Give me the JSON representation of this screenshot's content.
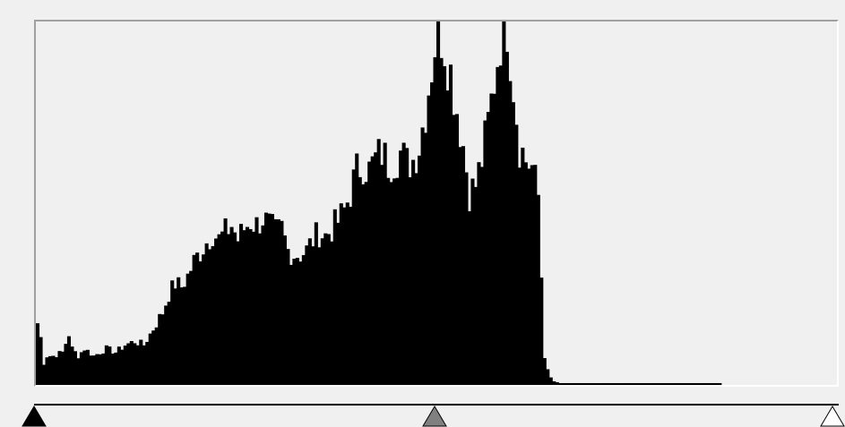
{
  "histogram": {
    "bins": 256,
    "max": 100,
    "bar_color": "#000000",
    "background": "#f0f0f0",
    "keypoints": [
      [
        0,
        17
      ],
      [
        1,
        13
      ],
      [
        2,
        6
      ],
      [
        3,
        8
      ],
      [
        5,
        8
      ],
      [
        8,
        9
      ],
      [
        10,
        14
      ],
      [
        11,
        10
      ],
      [
        13,
        8
      ],
      [
        15,
        10
      ],
      [
        18,
        8
      ],
      [
        20,
        9
      ],
      [
        22,
        10
      ],
      [
        25,
        9
      ],
      [
        28,
        11
      ],
      [
        31,
        12
      ],
      [
        34,
        11
      ],
      [
        36,
        14
      ],
      [
        38,
        17
      ],
      [
        40,
        20
      ],
      [
        42,
        25
      ],
      [
        44,
        28
      ],
      [
        46,
        27
      ],
      [
        48,
        30
      ],
      [
        50,
        34
      ],
      [
        53,
        38
      ],
      [
        56,
        42
      ],
      [
        58,
        40
      ],
      [
        60,
        42
      ],
      [
        62,
        44
      ],
      [
        64,
        40
      ],
      [
        66,
        43
      ],
      [
        68,
        45
      ],
      [
        70,
        44
      ],
      [
        72,
        46
      ],
      [
        74,
        44
      ],
      [
        76,
        42
      ],
      [
        78,
        43
      ],
      [
        80,
        37
      ],
      [
        82,
        36
      ],
      [
        84,
        36
      ],
      [
        86,
        37
      ],
      [
        88,
        40
      ],
      [
        90,
        42
      ],
      [
        92,
        41
      ],
      [
        94,
        43
      ],
      [
        96,
        45
      ],
      [
        98,
        48
      ],
      [
        100,
        53
      ],
      [
        102,
        59
      ],
      [
        104,
        61
      ],
      [
        106,
        59
      ],
      [
        108,
        62
      ],
      [
        110,
        64
      ],
      [
        112,
        61
      ],
      [
        114,
        62
      ],
      [
        116,
        64
      ],
      [
        118,
        61
      ],
      [
        120,
        62
      ],
      [
        122,
        66
      ],
      [
        124,
        76
      ],
      [
        126,
        88
      ],
      [
        128,
        100
      ],
      [
        130,
        94
      ],
      [
        132,
        86
      ],
      [
        134,
        76
      ],
      [
        136,
        66
      ],
      [
        138,
        53
      ],
      [
        140,
        55
      ],
      [
        142,
        62
      ],
      [
        144,
        72
      ],
      [
        146,
        84
      ],
      [
        148,
        96
      ],
      [
        150,
        100
      ],
      [
        152,
        83
      ],
      [
        154,
        66
      ],
      [
        156,
        62
      ],
      [
        158,
        60
      ],
      [
        160,
        52
      ],
      [
        161,
        30
      ],
      [
        162,
        8
      ],
      [
        163,
        4
      ],
      [
        164,
        2
      ],
      [
        165,
        1
      ],
      [
        167,
        0.5
      ],
      [
        218,
        0.5
      ],
      [
        219,
        0
      ],
      [
        255,
        0
      ]
    ]
  },
  "slider": {
    "black_point": 0,
    "gamma_point": 127,
    "white_point": 255,
    "black_color": "#000000",
    "gamma_color": "#808080",
    "white_color": "#ffffff"
  }
}
